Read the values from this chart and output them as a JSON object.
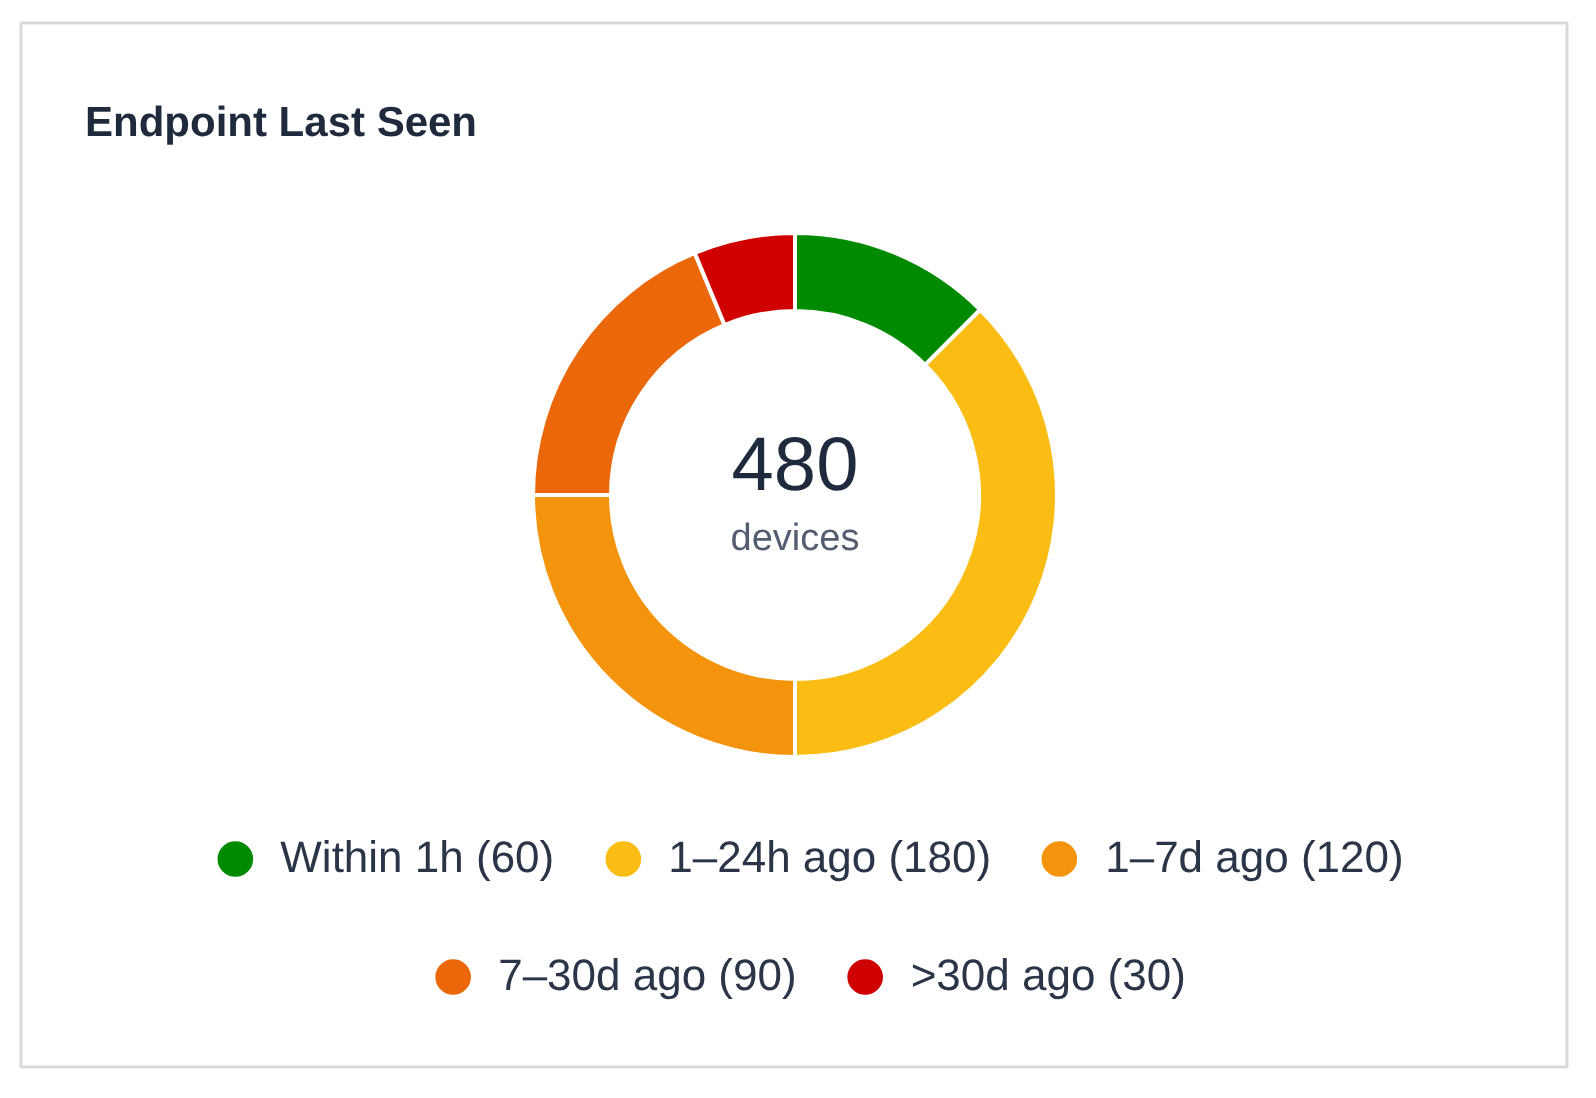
{
  "chart_data": {
    "type": "donut",
    "title": "Endpoint Last Seen",
    "categories": [
      "Within 1h",
      "1–24h ago",
      "1–7d ago",
      "7–30d ago",
      ">30d ago"
    ],
    "values": [
      60,
      180,
      120,
      90,
      30
    ],
    "value_labels": [
      "(60)",
      "(180)",
      "(120)",
      "(90)",
      "(30)"
    ],
    "colors": [
      "#008a00",
      "#fbbd13",
      "#f4940c",
      "#eb680a",
      "#d00000"
    ],
    "annotations": [
      "480",
      "devices"
    ],
    "legend": "bottom"
  }
}
